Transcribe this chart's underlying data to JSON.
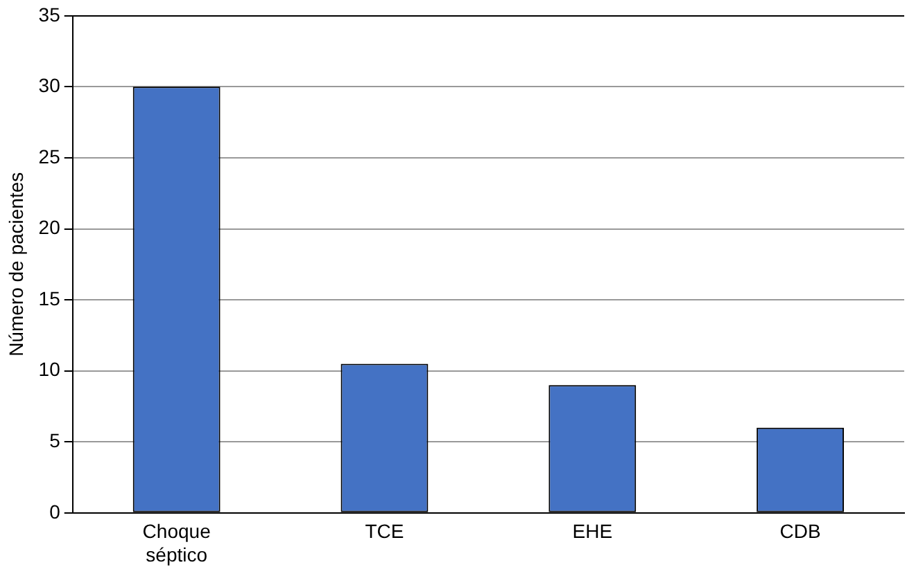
{
  "chart_data": {
    "type": "bar",
    "ylabel": "Número de pacientes",
    "categories": [
      "Choque séptico",
      "TCE",
      "EHE",
      "CDB"
    ],
    "values": [
      30,
      10.5,
      9,
      6
    ],
    "color": "#4472c4",
    "ylim": [
      0,
      35
    ],
    "yticks": [
      0,
      5,
      10,
      15,
      20,
      25,
      30,
      35
    ],
    "grid": "y",
    "legend": false
  }
}
